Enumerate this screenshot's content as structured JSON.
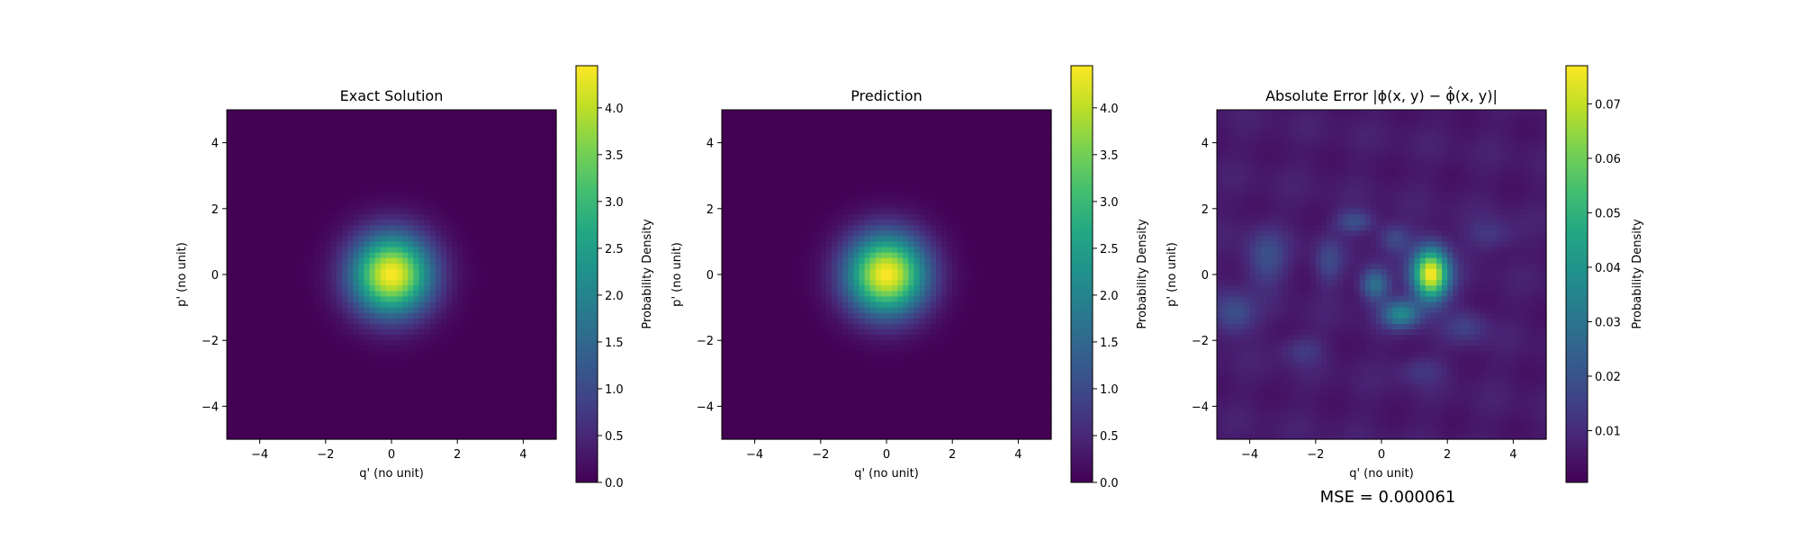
{
  "figure": {
    "footer_text": "MSE = 0.000061"
  },
  "chart_data": [
    {
      "type": "heatmap",
      "title": "Exact Solution",
      "xlabel": "q' (no unit)",
      "ylabel": "p' (no unit)",
      "xlim": [
        -5,
        5
      ],
      "ylim": [
        -5,
        5
      ],
      "xticks": [
        -4,
        -2,
        0,
        2,
        4
      ],
      "yticks": [
        -4,
        -2,
        0,
        2,
        4
      ],
      "xtick_labels": [
        "−4",
        "−2",
        "0",
        "2",
        "4"
      ],
      "ytick_labels": [
        "−4",
        "−2",
        "0",
        "2",
        "4"
      ],
      "colormap": "viridis",
      "field": {
        "kind": "gaussian",
        "amplitude": 4.45,
        "center": [
          0,
          0
        ],
        "sigma": 0.85
      },
      "colorbar": {
        "label": "Probability Density",
        "range": [
          0.0,
          4.45
        ],
        "ticks": [
          0.0,
          0.5,
          1.0,
          1.5,
          2.0,
          2.5,
          3.0,
          3.5,
          4.0
        ],
        "tick_labels": [
          "0.0",
          "0.5",
          "1.0",
          "1.5",
          "2.0",
          "2.5",
          "3.0",
          "3.5",
          "4.0"
        ]
      }
    },
    {
      "type": "heatmap",
      "title": "Prediction",
      "xlabel": "q' (no unit)",
      "ylabel": "p' (no unit)",
      "xlim": [
        -5,
        5
      ],
      "ylim": [
        -5,
        5
      ],
      "xticks": [
        -4,
        -2,
        0,
        2,
        4
      ],
      "yticks": [
        -4,
        -2,
        0,
        2,
        4
      ],
      "xtick_labels": [
        "−4",
        "−2",
        "0",
        "2",
        "4"
      ],
      "ytick_labels": [
        "−4",
        "−2",
        "0",
        "2",
        "4"
      ],
      "colormap": "viridis",
      "field": {
        "kind": "gaussian",
        "amplitude": 4.45,
        "center": [
          0,
          0
        ],
        "sigma": 0.85
      },
      "colorbar": {
        "label": "Probability Density",
        "range": [
          0.0,
          4.45
        ],
        "ticks": [
          0.0,
          0.5,
          1.0,
          1.5,
          2.0,
          2.5,
          3.0,
          3.5,
          4.0
        ],
        "tick_labels": [
          "0.0",
          "0.5",
          "1.0",
          "1.5",
          "2.0",
          "2.5",
          "3.0",
          "3.5",
          "4.0"
        ]
      }
    },
    {
      "type": "heatmap",
      "title": "Absolute Error |ϕ(x, y) − ϕ̂(x, y)|",
      "xlabel": "q' (no unit)",
      "ylabel": "p' (no unit)",
      "xlim": [
        -5,
        5
      ],
      "ylim": [
        -5,
        5
      ],
      "xticks": [
        -4,
        -2,
        0,
        2,
        4
      ],
      "yticks": [
        -4,
        -2,
        0,
        2,
        4
      ],
      "xtick_labels": [
        "−4",
        "−2",
        "0",
        "2",
        "4"
      ],
      "ytick_labels": [
        "−4",
        "−2",
        "0",
        "2",
        "4"
      ],
      "colormap": "viridis",
      "field": {
        "kind": "error-blobs",
        "background": 0.004,
        "peaks": [
          {
            "center": [
              1.5,
              0.0
            ],
            "sigma": [
              0.38,
              0.55
            ],
            "amplitude": 0.072
          },
          {
            "center": [
              0.6,
              -1.2
            ],
            "sigma": [
              0.4,
              0.3
            ],
            "amplitude": 0.03
          },
          {
            "center": [
              -0.2,
              -0.3
            ],
            "sigma": [
              0.3,
              0.35
            ],
            "amplitude": 0.025
          },
          {
            "center": [
              -0.8,
              1.6
            ],
            "sigma": [
              0.4,
              0.25
            ],
            "amplitude": 0.014
          },
          {
            "center": [
              0.4,
              1.1
            ],
            "sigma": [
              0.35,
              0.3
            ],
            "amplitude": 0.012
          },
          {
            "center": [
              -1.6,
              0.4
            ],
            "sigma": [
              0.3,
              0.5
            ],
            "amplitude": 0.011
          },
          {
            "center": [
              -3.5,
              0.5
            ],
            "sigma": [
              0.45,
              0.6
            ],
            "amplitude": 0.013
          },
          {
            "center": [
              -4.5,
              -1.2
            ],
            "sigma": [
              0.45,
              0.45
            ],
            "amplitude": 0.014
          },
          {
            "center": [
              3.3,
              1.2
            ],
            "sigma": [
              0.5,
              0.35
            ],
            "amplitude": 0.008
          },
          {
            "center": [
              2.6,
              -1.6
            ],
            "sigma": [
              0.45,
              0.35
            ],
            "amplitude": 0.009
          },
          {
            "center": [
              -2.4,
              -2.3
            ],
            "sigma": [
              0.45,
              0.3
            ],
            "amplitude": 0.008
          },
          {
            "center": [
              1.2,
              -2.9
            ],
            "sigma": [
              0.5,
              0.3
            ],
            "amplitude": 0.007
          }
        ],
        "ripple_amplitude": 0.004
      },
      "colorbar": {
        "label": "Probability Density",
        "range": [
          0.0005,
          0.077
        ],
        "ticks": [
          0.01,
          0.02,
          0.03,
          0.04,
          0.05,
          0.06,
          0.07
        ],
        "tick_labels": [
          "0.01",
          "0.02",
          "0.03",
          "0.04",
          "0.05",
          "0.06",
          "0.07"
        ]
      }
    }
  ]
}
